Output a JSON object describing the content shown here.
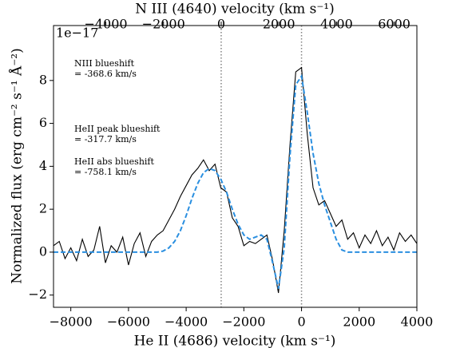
{
  "chart_data": {
    "type": "line",
    "xlabel": "He II (4686) velocity (km s⁻¹)",
    "x2label": "N III (4640) velocity (km s⁻¹)",
    "ylabel": "Normalized flux (erg cm⁻² s⁻¹ Å⁻²)",
    "offset_text": "1e−17",
    "x": [
      -8600,
      -8400,
      -8200,
      -8000,
      -7800,
      -7600,
      -7400,
      -7200,
      -7000,
      -6800,
      -6600,
      -6400,
      -6200,
      -6000,
      -5800,
      -5600,
      -5400,
      -5200,
      -5000,
      -4800,
      -4600,
      -4400,
      -4200,
      -4000,
      -3800,
      -3600,
      -3400,
      -3200,
      -3000,
      -2800,
      -2600,
      -2400,
      -2200,
      -2000,
      -1800,
      -1600,
      -1400,
      -1200,
      -1000,
      -800,
      -600,
      -400,
      -200,
      0,
      200,
      400,
      600,
      800,
      1000,
      1200,
      1400,
      1600,
      1800,
      2000,
      2200,
      2400,
      2600,
      2800,
      3000,
      3200,
      3400,
      3600,
      3800,
      4000
    ],
    "series": [
      {
        "color": "#000000",
        "dash": false,
        "values": [
          0.3,
          0.5,
          -0.3,
          0.2,
          -0.4,
          0.6,
          -0.2,
          0.1,
          1.2,
          -0.5,
          0.3,
          0.0,
          0.7,
          -0.6,
          0.4,
          0.9,
          -0.2,
          0.5,
          0.8,
          1.0,
          1.5,
          2.0,
          2.6,
          3.1,
          3.6,
          3.9,
          4.3,
          3.8,
          4.1,
          3.0,
          2.8,
          1.6,
          1.2,
          0.3,
          0.5,
          0.4,
          0.6,
          0.8,
          -0.4,
          -1.9,
          1.0,
          5.0,
          8.4,
          8.6,
          5.5,
          3.0,
          2.2,
          2.4,
          1.8,
          1.2,
          1.5,
          0.6,
          0.9,
          0.2,
          0.8,
          0.4,
          1.0,
          0.3,
          0.7,
          0.1,
          0.9,
          0.5,
          0.8,
          0.4
        ]
      },
      {
        "color": "#2a8fe0",
        "dash": true,
        "values": [
          0,
          0,
          0,
          0,
          0,
          0,
          0,
          0,
          0,
          0,
          0,
          0,
          0,
          0,
          0,
          0,
          0,
          0,
          0,
          0.05,
          0.2,
          0.5,
          1.0,
          1.7,
          2.5,
          3.2,
          3.7,
          3.9,
          3.8,
          3.4,
          2.8,
          2.0,
          1.3,
          0.8,
          0.6,
          0.7,
          0.8,
          0.6,
          -0.5,
          -1.7,
          0.2,
          4.5,
          7.8,
          8.2,
          6.5,
          4.6,
          3.2,
          2.2,
          1.4,
          0.6,
          0.1,
          0,
          0,
          0,
          0,
          0,
          0,
          0,
          0,
          0,
          0,
          0,
          0,
          0
        ]
      }
    ],
    "xlim": [
      -8600,
      4000
    ],
    "xticks": [
      {
        "value": -8000,
        "label": "−8000"
      },
      {
        "value": -6000,
        "label": "−6000"
      },
      {
        "value": -4000,
        "label": "−4000"
      },
      {
        "value": -2000,
        "label": "−2000"
      },
      0,
      2000,
      4000
    ],
    "x2lim": [
      -5814,
      6786
    ],
    "x2ticks": [
      {
        "value": -4000,
        "label": "−4000"
      },
      {
        "value": -2000,
        "label": "−2000"
      },
      0,
      2000,
      4000,
      6000
    ],
    "ylim": [
      -2.57,
      10.56
    ],
    "yticks": [
      {
        "value": -2,
        "label": "−2"
      },
      0,
      2,
      4,
      6,
      8
    ],
    "vlines": [
      -2786,
      0
    ],
    "annotations": [
      [
        "NIII blueshift",
        "= -368.6 km/s"
      ],
      [
        "HeII peak blueshift",
        "= -317.7 km/s"
      ],
      [
        "HeII abs blueshift",
        "= -758.1 km/s"
      ]
    ]
  }
}
